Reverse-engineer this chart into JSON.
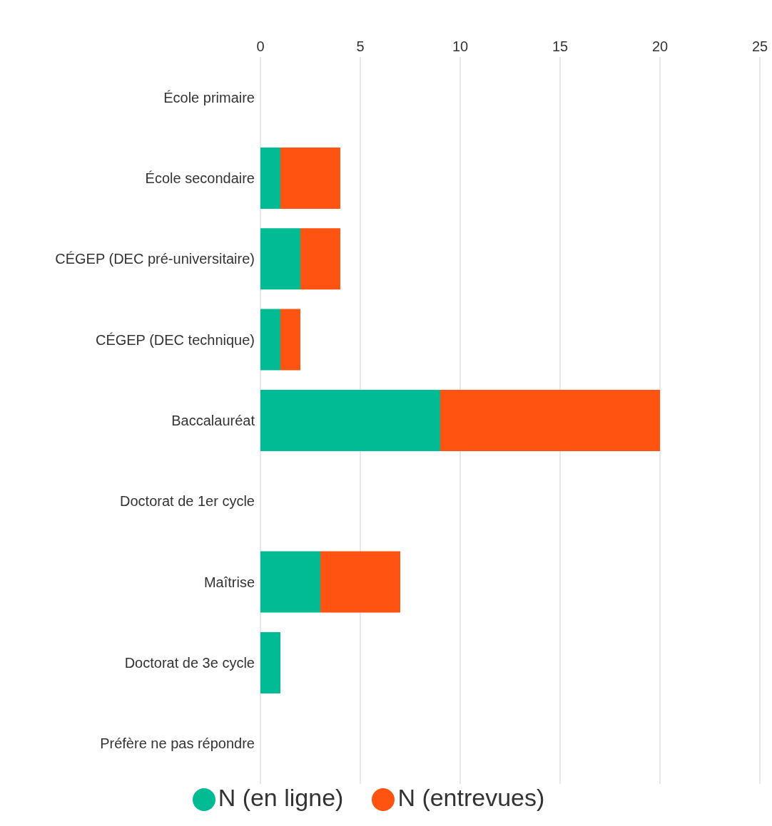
{
  "chart_data": {
    "type": "bar",
    "orientation": "horizontal",
    "stacked": true,
    "categories": [
      "École primaire",
      "École secondaire",
      "CÉGEP (DEC pré-universitaire)",
      "CÉGEP (DEC technique)",
      "Baccalauréat",
      "Doctorat de 1er cycle",
      "Maîtrise",
      "Doctorat de 3e cycle",
      "Préfère ne pas répondre"
    ],
    "series": [
      {
        "name": "N (en ligne)",
        "color": "#00bb94",
        "values": [
          0,
          1,
          2,
          1,
          9,
          0,
          3,
          1,
          0
        ]
      },
      {
        "name": "N (entrevues)",
        "color": "#ff5311",
        "values": [
          0,
          3,
          2,
          1,
          11,
          0,
          4,
          0,
          0
        ]
      }
    ],
    "xlim": [
      0,
      25
    ],
    "xticks": [
      0,
      5,
      10,
      15,
      20,
      25
    ],
    "grid": "x",
    "legend": "bottom"
  }
}
